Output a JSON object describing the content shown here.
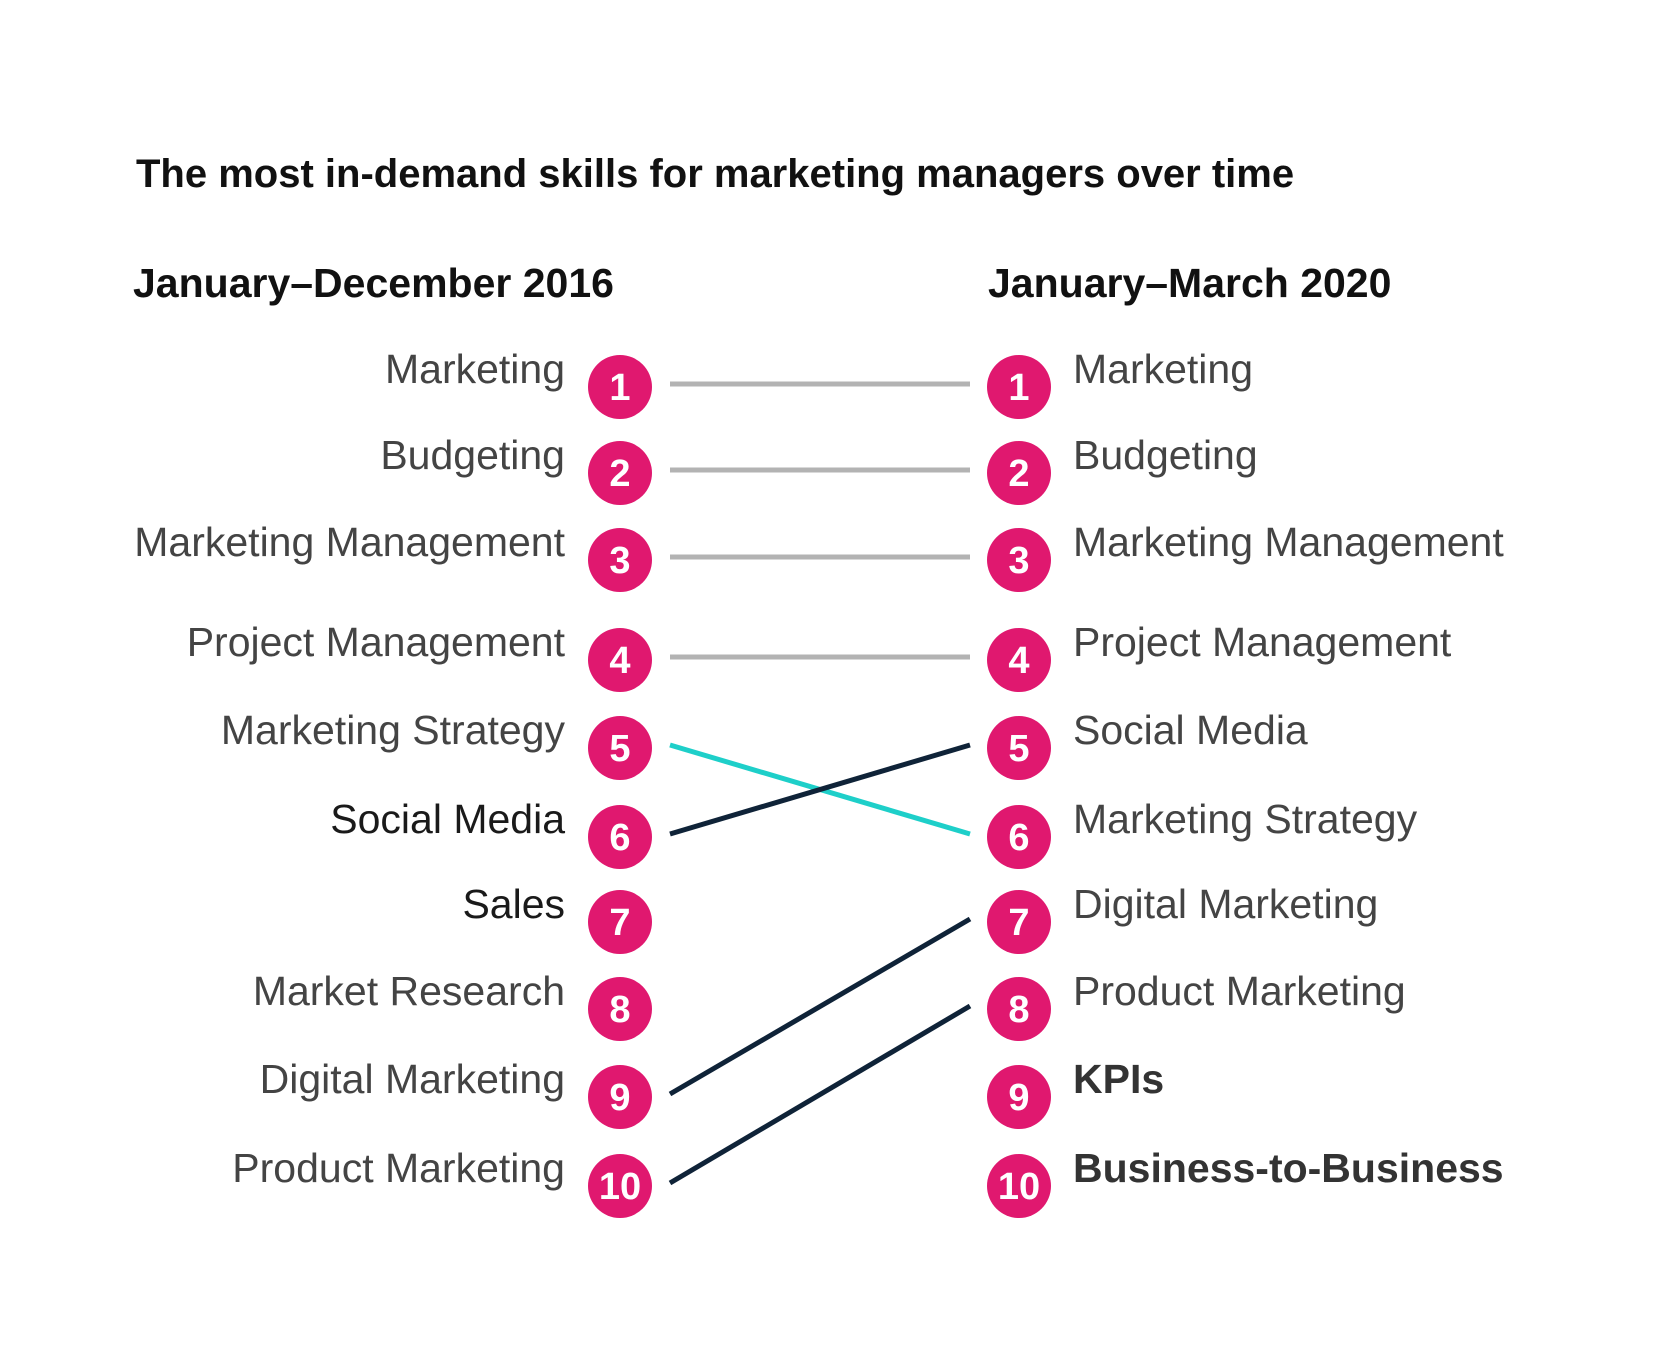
{
  "chart_data": {
    "type": "slope",
    "title": "The most in-demand skills for marketing managers over time",
    "left_header": "January–December 2016",
    "right_header": "January–March 2020",
    "left": [
      {
        "rank": 1,
        "skill": "Marketing",
        "style": "light"
      },
      {
        "rank": 2,
        "skill": "Budgeting",
        "style": "light"
      },
      {
        "rank": 3,
        "skill": "Marketing Management",
        "style": "light"
      },
      {
        "rank": 4,
        "skill": "Project Management",
        "style": "light"
      },
      {
        "rank": 5,
        "skill": "Marketing Strategy",
        "style": "light"
      },
      {
        "rank": 6,
        "skill": "Social Media",
        "style": "dark"
      },
      {
        "rank": 7,
        "skill": "Sales",
        "style": "dark"
      },
      {
        "rank": 8,
        "skill": "Market Research",
        "style": "light"
      },
      {
        "rank": 9,
        "skill": "Digital Marketing",
        "style": "light"
      },
      {
        "rank": 10,
        "skill": "Product Marketing",
        "style": "light"
      }
    ],
    "right": [
      {
        "rank": 1,
        "skill": "Marketing",
        "style": "light"
      },
      {
        "rank": 2,
        "skill": "Budgeting",
        "style": "light"
      },
      {
        "rank": 3,
        "skill": "Marketing Management",
        "style": "light"
      },
      {
        "rank": 4,
        "skill": "Project Management",
        "style": "light"
      },
      {
        "rank": 5,
        "skill": "Social Media",
        "style": "light"
      },
      {
        "rank": 6,
        "skill": "Marketing Strategy",
        "style": "light"
      },
      {
        "rank": 7,
        "skill": "Digital Marketing",
        "style": "light"
      },
      {
        "rank": 8,
        "skill": "Product Marketing",
        "style": "light"
      },
      {
        "rank": 9,
        "skill": "KPIs",
        "style": "bold"
      },
      {
        "rank": 10,
        "skill": "Business-to-Business",
        "style": "bold"
      }
    ],
    "connections": [
      {
        "from_rank": 1,
        "to_rank": 1,
        "color": "#b3b3b3"
      },
      {
        "from_rank": 2,
        "to_rank": 2,
        "color": "#b3b3b3"
      },
      {
        "from_rank": 3,
        "to_rank": 3,
        "color": "#b3b3b3"
      },
      {
        "from_rank": 4,
        "to_rank": 4,
        "color": "#b3b3b3"
      },
      {
        "from_rank": 5,
        "to_rank": 6,
        "color": "#1ecfc9"
      },
      {
        "from_rank": 6,
        "to_rank": 5,
        "color": "#0f2338"
      },
      {
        "from_rank": 9,
        "to_rank": 7,
        "color": "#0f2338"
      },
      {
        "from_rank": 10,
        "to_rank": 8,
        "color": "#0f2338"
      }
    ],
    "colors": {
      "rank_circle": "#e0186f",
      "rank_text": "#ffffff"
    }
  }
}
